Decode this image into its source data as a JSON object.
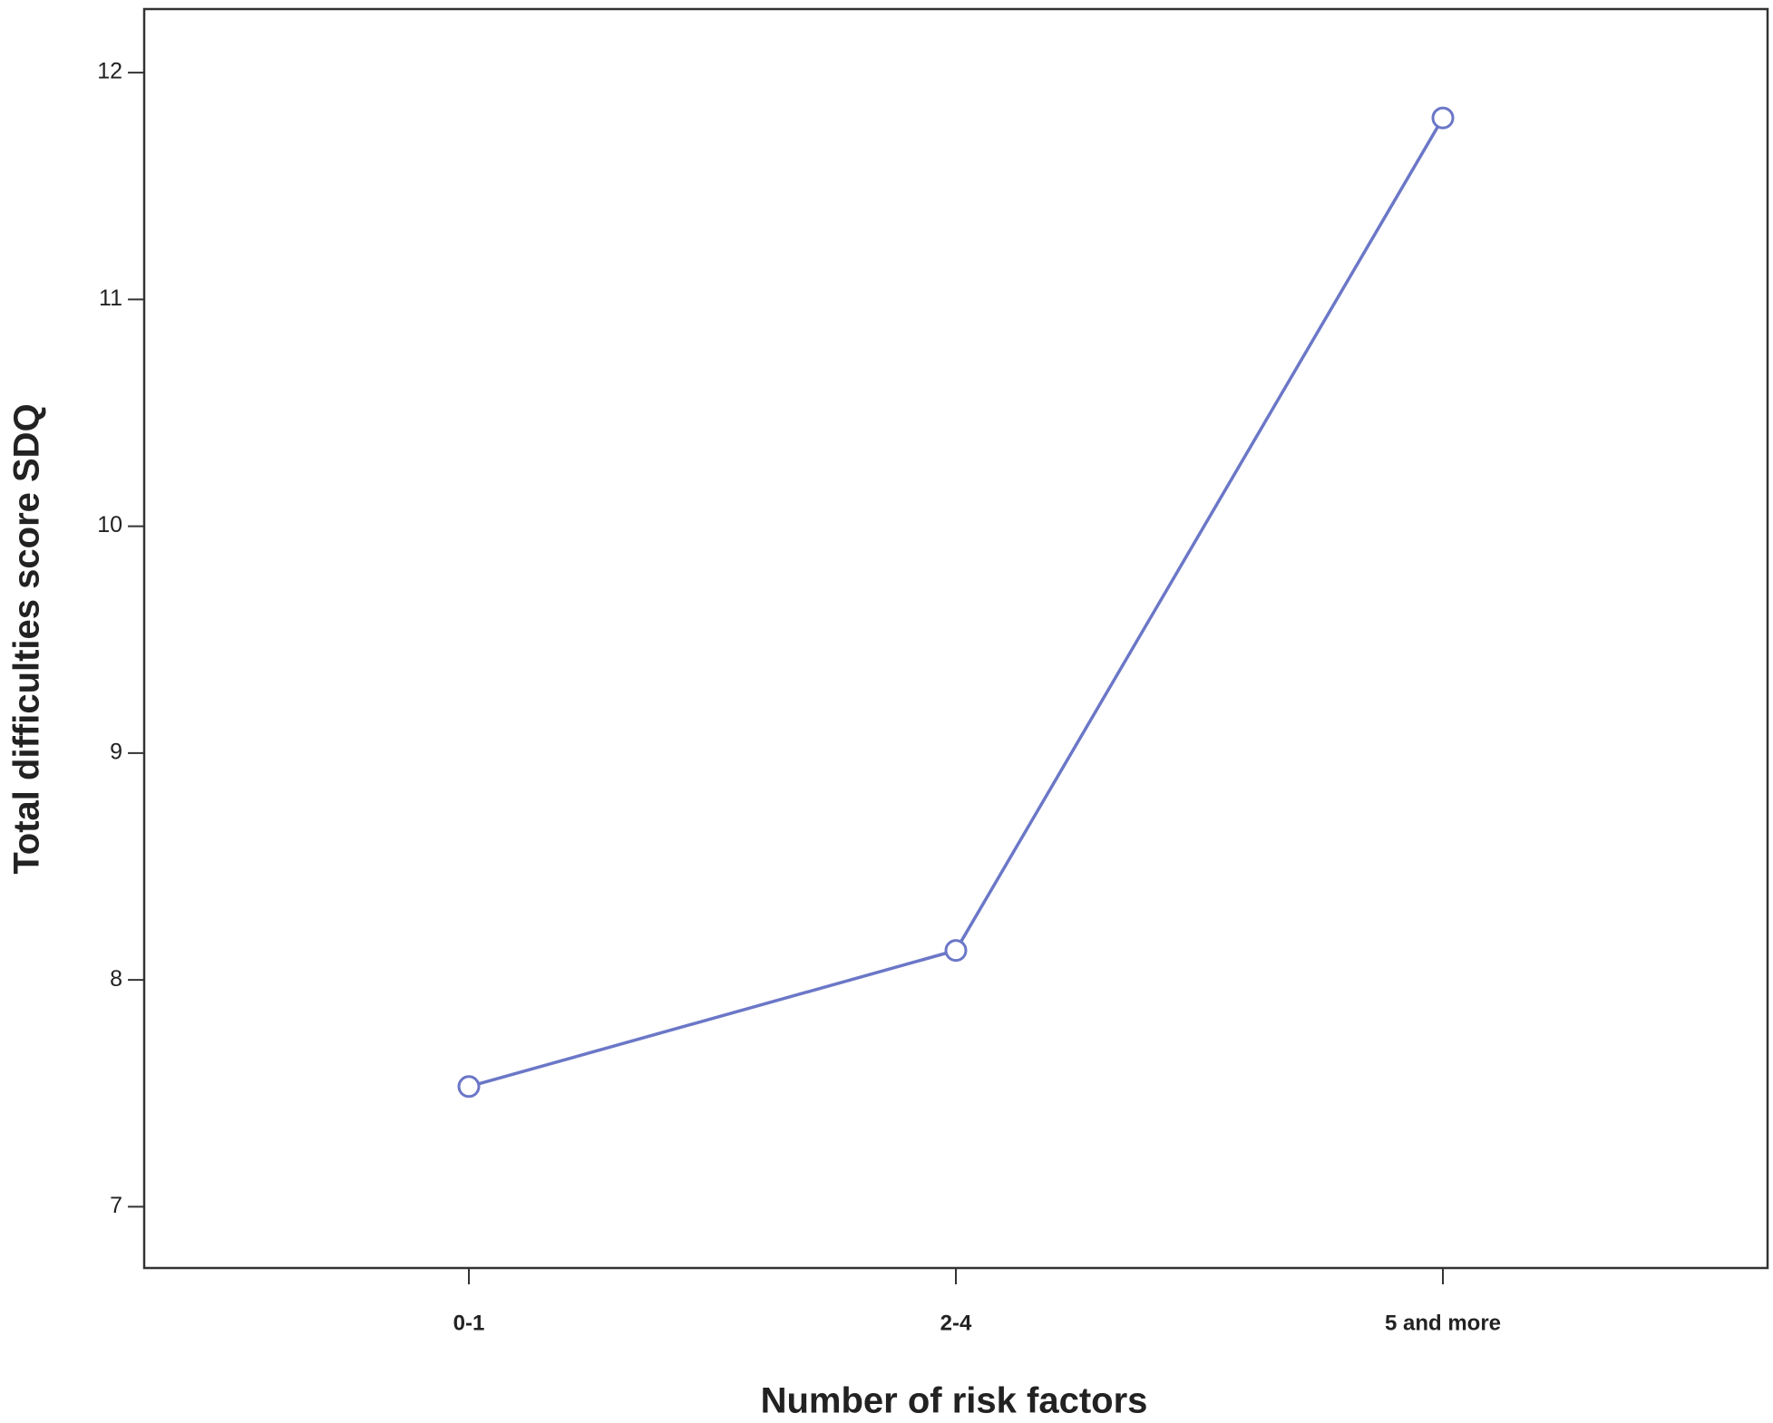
{
  "chart_data": {
    "type": "line",
    "x_label": "Number of risk factors",
    "y_label": "Total difficulties score SDQ",
    "categories": [
      "0-1",
      "2-4",
      "5 and more"
    ],
    "series": [
      {
        "name": "Total difficulties score SDQ",
        "color": "#6b77c7",
        "values": [
          7.53,
          8.13,
          11.8
        ]
      }
    ],
    "ylim": [
      6.73,
      12.28
    ],
    "yticks": [
      7,
      8,
      9,
      10,
      11,
      12
    ],
    "grid": false
  }
}
